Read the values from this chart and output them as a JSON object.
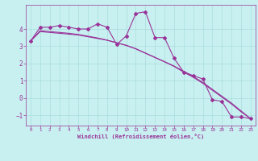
{
  "xlabel": "Windchill (Refroidissement éolien,°C)",
  "background_color": "#c8f0f0",
  "line_color": "#993399",
  "grid_color": "#aadddd",
  "x_data": [
    0,
    1,
    2,
    3,
    4,
    5,
    6,
    7,
    8,
    9,
    10,
    11,
    12,
    13,
    14,
    15,
    16,
    17,
    18,
    19,
    20,
    21,
    22,
    23
  ],
  "y_main": [
    3.3,
    4.1,
    4.1,
    4.2,
    4.1,
    4.0,
    4.0,
    4.3,
    4.1,
    3.1,
    3.6,
    4.9,
    5.0,
    3.5,
    3.5,
    2.3,
    1.5,
    1.3,
    1.1,
    -0.1,
    -0.2,
    -1.1,
    -1.1,
    -1.2
  ],
  "y_line1": [
    3.3,
    3.85,
    3.8,
    3.75,
    3.7,
    3.65,
    3.55,
    3.45,
    3.35,
    3.2,
    3.05,
    2.85,
    2.6,
    2.35,
    2.1,
    1.85,
    1.55,
    1.25,
    0.9,
    0.5,
    0.1,
    -0.3,
    -0.75,
    -1.2
  ],
  "y_line2": [
    3.3,
    3.9,
    3.85,
    3.8,
    3.75,
    3.68,
    3.58,
    3.48,
    3.35,
    3.2,
    3.05,
    2.85,
    2.6,
    2.35,
    2.1,
    1.83,
    1.5,
    1.2,
    0.85,
    0.45,
    0.05,
    -0.35,
    -0.8,
    -1.2
  ],
  "ylim": [
    -1.6,
    5.4
  ],
  "yticks": [
    -1,
    0,
    1,
    2,
    3,
    4
  ],
  "xticks": [
    0,
    1,
    2,
    3,
    4,
    5,
    6,
    7,
    8,
    9,
    10,
    11,
    12,
    13,
    14,
    15,
    16,
    17,
    18,
    19,
    20,
    21,
    22,
    23
  ]
}
